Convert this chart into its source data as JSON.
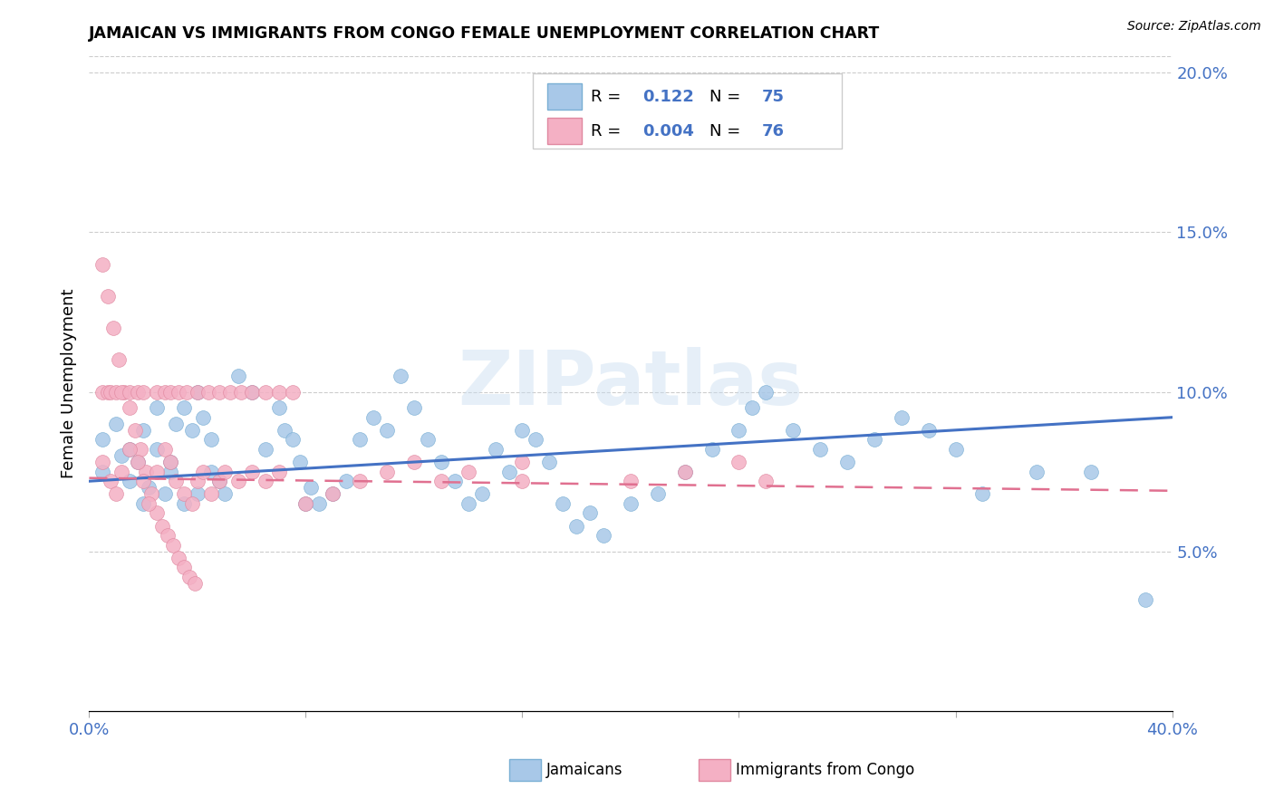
{
  "title": "JAMAICAN VS IMMIGRANTS FROM CONGO FEMALE UNEMPLOYMENT CORRELATION CHART",
  "source": "Source: ZipAtlas.com",
  "ylabel": "Female Unemployment",
  "xlim": [
    0.0,
    0.4
  ],
  "ylim": [
    0.0,
    0.205
  ],
  "xticks": [
    0.0,
    0.08,
    0.16,
    0.24,
    0.32,
    0.4
  ],
  "xtick_labels": [
    "0.0%",
    "",
    "",
    "",
    "",
    "40.0%"
  ],
  "yticks_right": [
    0.05,
    0.1,
    0.15,
    0.2
  ],
  "ytick_right_labels": [
    "5.0%",
    "10.0%",
    "15.0%",
    "20.0%"
  ],
  "blue_scatter_color": "#a8c8e8",
  "blue_scatter_edge": "#7aafd4",
  "pink_scatter_color": "#f4b0c4",
  "pink_scatter_edge": "#e088a0",
  "blue_line_color": "#4472c4",
  "pink_line_color": "#e07090",
  "grid_color": "#cccccc",
  "watermark_color": "#c8ddf0",
  "legend_R1": "0.122",
  "legend_N1": "75",
  "legend_R2": "0.004",
  "legend_N2": "76",
  "watermark": "ZIPatlas",
  "jamaicans_x": [
    0.005,
    0.012,
    0.015,
    0.018,
    0.02,
    0.022,
    0.025,
    0.028,
    0.03,
    0.032,
    0.035,
    0.038,
    0.04,
    0.042,
    0.045,
    0.048,
    0.05,
    0.055,
    0.06,
    0.065,
    0.07,
    0.072,
    0.075,
    0.078,
    0.08,
    0.082,
    0.085,
    0.09,
    0.095,
    0.1,
    0.105,
    0.11,
    0.115,
    0.12,
    0.125,
    0.13,
    0.135,
    0.14,
    0.145,
    0.15,
    0.155,
    0.16,
    0.165,
    0.17,
    0.175,
    0.18,
    0.185,
    0.19,
    0.2,
    0.21,
    0.22,
    0.23,
    0.24,
    0.245,
    0.25,
    0.26,
    0.27,
    0.28,
    0.29,
    0.3,
    0.31,
    0.32,
    0.33,
    0.35,
    0.37,
    0.005,
    0.01,
    0.015,
    0.02,
    0.025,
    0.03,
    0.035,
    0.04,
    0.045,
    0.39
  ],
  "jamaicans_y": [
    0.075,
    0.08,
    0.072,
    0.078,
    0.065,
    0.07,
    0.082,
    0.068,
    0.075,
    0.09,
    0.095,
    0.088,
    0.1,
    0.092,
    0.085,
    0.072,
    0.068,
    0.105,
    0.1,
    0.082,
    0.095,
    0.088,
    0.085,
    0.078,
    0.065,
    0.07,
    0.065,
    0.068,
    0.072,
    0.085,
    0.092,
    0.088,
    0.105,
    0.095,
    0.085,
    0.078,
    0.072,
    0.065,
    0.068,
    0.082,
    0.075,
    0.088,
    0.085,
    0.078,
    0.065,
    0.058,
    0.062,
    0.055,
    0.065,
    0.068,
    0.075,
    0.082,
    0.088,
    0.095,
    0.1,
    0.088,
    0.082,
    0.078,
    0.085,
    0.092,
    0.088,
    0.082,
    0.068,
    0.075,
    0.075,
    0.085,
    0.09,
    0.082,
    0.088,
    0.095,
    0.078,
    0.065,
    0.068,
    0.075,
    0.035
  ],
  "congo_x": [
    0.005,
    0.007,
    0.009,
    0.011,
    0.013,
    0.015,
    0.017,
    0.019,
    0.021,
    0.023,
    0.025,
    0.027,
    0.029,
    0.031,
    0.033,
    0.035,
    0.037,
    0.039,
    0.005,
    0.008,
    0.01,
    0.012,
    0.015,
    0.018,
    0.02,
    0.022,
    0.025,
    0.028,
    0.03,
    0.032,
    0.035,
    0.038,
    0.04,
    0.042,
    0.045,
    0.048,
    0.05,
    0.055,
    0.06,
    0.065,
    0.07,
    0.08,
    0.09,
    0.1,
    0.11,
    0.12,
    0.13,
    0.14,
    0.16,
    0.2,
    0.22,
    0.24,
    0.25,
    0.005,
    0.007,
    0.008,
    0.01,
    0.012,
    0.015,
    0.018,
    0.02,
    0.025,
    0.028,
    0.03,
    0.033,
    0.036,
    0.04,
    0.044,
    0.048,
    0.052,
    0.056,
    0.06,
    0.065,
    0.07,
    0.075,
    0.16
  ],
  "congo_y": [
    0.14,
    0.13,
    0.12,
    0.11,
    0.1,
    0.095,
    0.088,
    0.082,
    0.075,
    0.068,
    0.062,
    0.058,
    0.055,
    0.052,
    0.048,
    0.045,
    0.042,
    0.04,
    0.078,
    0.072,
    0.068,
    0.075,
    0.082,
    0.078,
    0.072,
    0.065,
    0.075,
    0.082,
    0.078,
    0.072,
    0.068,
    0.065,
    0.072,
    0.075,
    0.068,
    0.072,
    0.075,
    0.072,
    0.075,
    0.072,
    0.075,
    0.065,
    0.068,
    0.072,
    0.075,
    0.078,
    0.072,
    0.075,
    0.078,
    0.072,
    0.075,
    0.078,
    0.072,
    0.1,
    0.1,
    0.1,
    0.1,
    0.1,
    0.1,
    0.1,
    0.1,
    0.1,
    0.1,
    0.1,
    0.1,
    0.1,
    0.1,
    0.1,
    0.1,
    0.1,
    0.1,
    0.1,
    0.1,
    0.1,
    0.1,
    0.072
  ],
  "jam_trend_x": [
    0.0,
    0.4
  ],
  "jam_trend_y": [
    0.072,
    0.092
  ],
  "congo_trend_x": [
    0.0,
    0.4
  ],
  "congo_trend_y": [
    0.073,
    0.069
  ]
}
